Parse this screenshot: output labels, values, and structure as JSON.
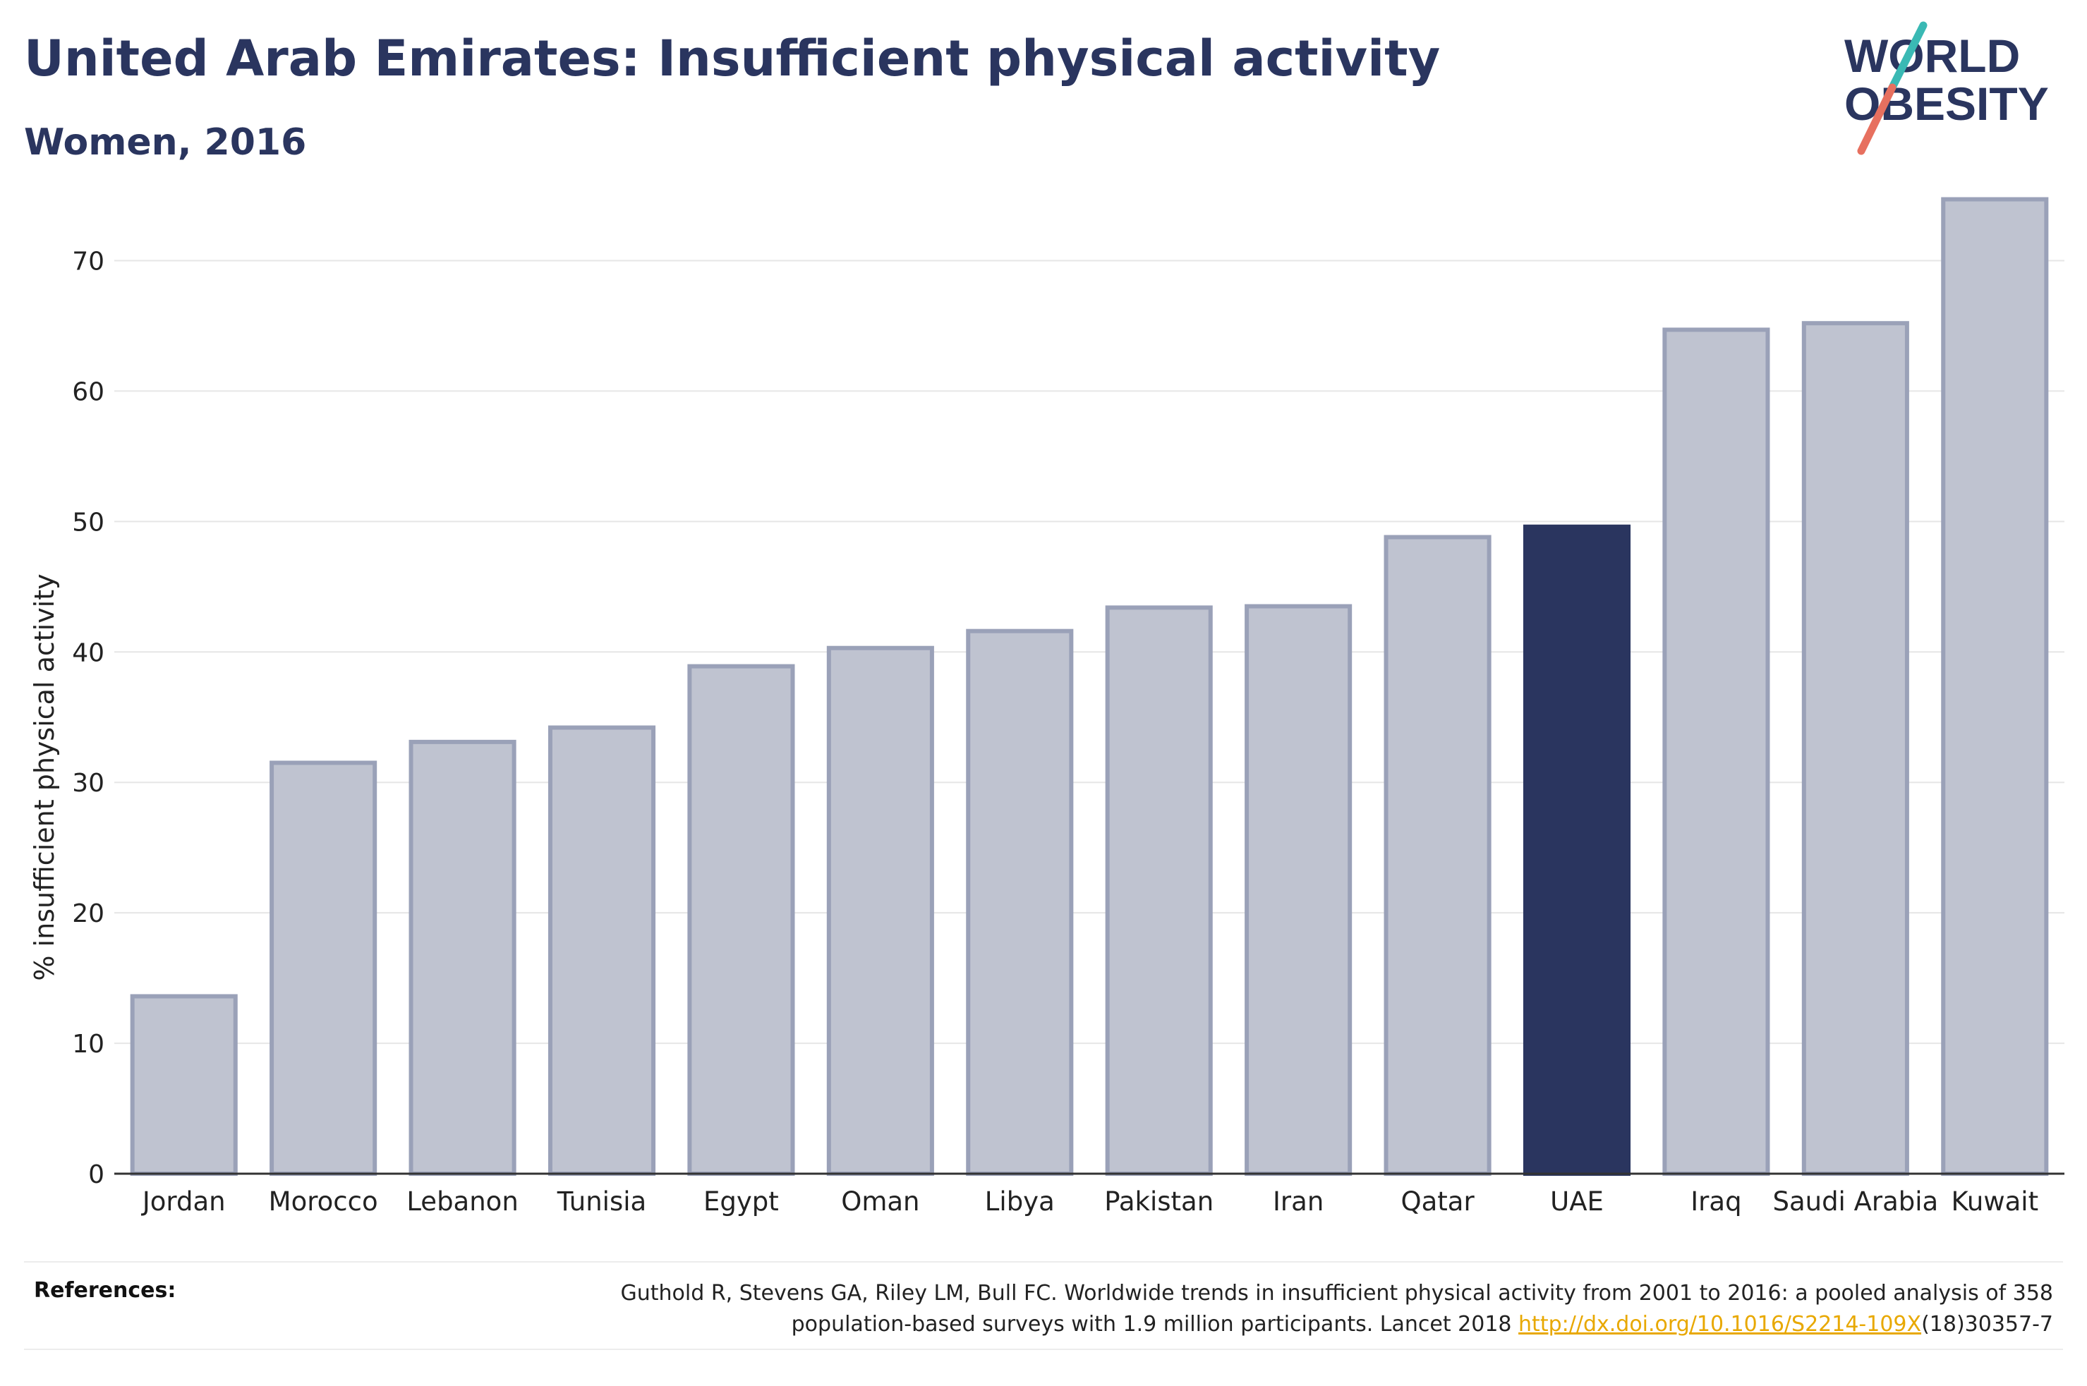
{
  "header": {
    "title": "United Arab Emirates: Insufficient physical activity",
    "subtitle": "Women, 2016"
  },
  "logo": {
    "line1": "WORLD",
    "line2": "OBESITY"
  },
  "references": {
    "label": "References:",
    "line1": "Guthold R, Stevens GA, Riley LM, Bull FC. Worldwide trends in insufficient physical activity from 2001 to 2016: a pooled analysis of 358",
    "line2_prefix": "population-based surveys with 1.9 million participants. Lancet 2018 ",
    "link": "http://dx.doi.org/10.1016/S2214-109X",
    "line2_suffix": "(18)30357-7"
  },
  "colors": {
    "highlight": "#2a355f",
    "bar": "#bfc3d0",
    "bar_edge": "#9aa1b8",
    "title": "#2a355f",
    "logo_teal": "#3ab9b4",
    "logo_coral": "#e7705f"
  },
  "chart_data": {
    "type": "bar",
    "title": "United Arab Emirates: Insufficient physical activity",
    "subtitle": "Women, 2016",
    "xlabel": "",
    "ylabel": "% insufficient physical activity",
    "ylim": [
      0,
      77
    ],
    "yticks": [
      0,
      10,
      20,
      30,
      40,
      50,
      60,
      70
    ],
    "grid": true,
    "highlight": "UAE",
    "categories": [
      "Jordan",
      "Morocco",
      "Lebanon",
      "Tunisia",
      "Egypt",
      "Oman",
      "Libya",
      "Pakistan",
      "Iran",
      "Qatar",
      "UAE",
      "Iraq",
      "Saudi Arabia",
      "Kuwait"
    ],
    "values": [
      13.6,
      31.5,
      33.1,
      34.2,
      38.9,
      40.3,
      41.6,
      43.4,
      43.5,
      48.8,
      49.6,
      64.7,
      65.2,
      74.7
    ]
  }
}
